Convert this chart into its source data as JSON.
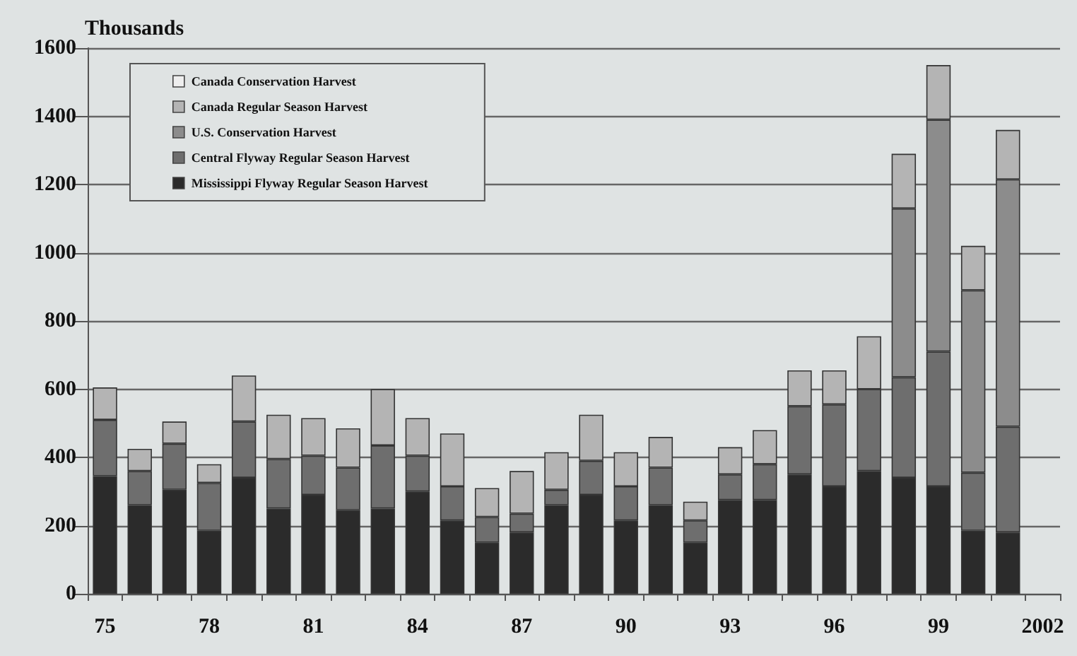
{
  "chart_data": {
    "type": "bar",
    "stacked": true,
    "ylabel": "Thousands",
    "categories": [
      "75",
      null,
      null,
      "78",
      null,
      null,
      "81",
      null,
      null,
      "84",
      null,
      null,
      "87",
      null,
      null,
      "90",
      null,
      null,
      "93",
      null,
      null,
      "96",
      null,
      null,
      "99",
      null,
      null,
      "2002"
    ],
    "series": [
      {
        "name": "Mississippi Flyway Regular Season Harvest",
        "color": "#2b2b2b",
        "values": [
          345,
          260,
          305,
          185,
          340,
          250,
          290,
          245,
          250,
          300,
          215,
          150,
          180,
          260,
          290,
          215,
          260,
          150,
          275,
          275,
          350,
          315,
          360,
          340,
          315,
          185,
          180,
          null
        ]
      },
      {
        "name": "Central Flyway Regular Season Harvest",
        "color": "#6e6e6e",
        "values": [
          165,
          100,
          135,
          140,
          165,
          145,
          115,
          125,
          185,
          105,
          100,
          75,
          55,
          45,
          100,
          100,
          110,
          65,
          75,
          105,
          200,
          240,
          240,
          295,
          395,
          170,
          310,
          null
        ]
      },
      {
        "name": "U.S. Conservation Harvest",
        "color": "#8c8c8c",
        "values": [
          null,
          null,
          null,
          null,
          null,
          null,
          null,
          null,
          null,
          null,
          null,
          null,
          null,
          null,
          null,
          null,
          null,
          null,
          null,
          null,
          null,
          null,
          null,
          495,
          680,
          535,
          725,
          null
        ]
      },
      {
        "name": "Canada Regular Season Harvest",
        "color": "#b4b4b4",
        "values": [
          95,
          65,
          65,
          55,
          135,
          130,
          110,
          115,
          165,
          110,
          155,
          85,
          125,
          110,
          135,
          100,
          90,
          55,
          80,
          100,
          105,
          100,
          155,
          160,
          160,
          130,
          145,
          null
        ]
      },
      {
        "name": "Canada Conservation Harvest",
        "color": "#eeeeee",
        "values": [
          null,
          null,
          null,
          null,
          null,
          null,
          null,
          null,
          null,
          null,
          null,
          null,
          null,
          null,
          null,
          null,
          null,
          null,
          null,
          null,
          null,
          null,
          null,
          null,
          null,
          null,
          null,
          null
        ]
      }
    ],
    "ylim": [
      0,
      1600
    ],
    "yticks": [
      0,
      200,
      400,
      600,
      800,
      1000,
      1200,
      1400,
      1600
    ],
    "grid": "y",
    "legend": "top left"
  }
}
